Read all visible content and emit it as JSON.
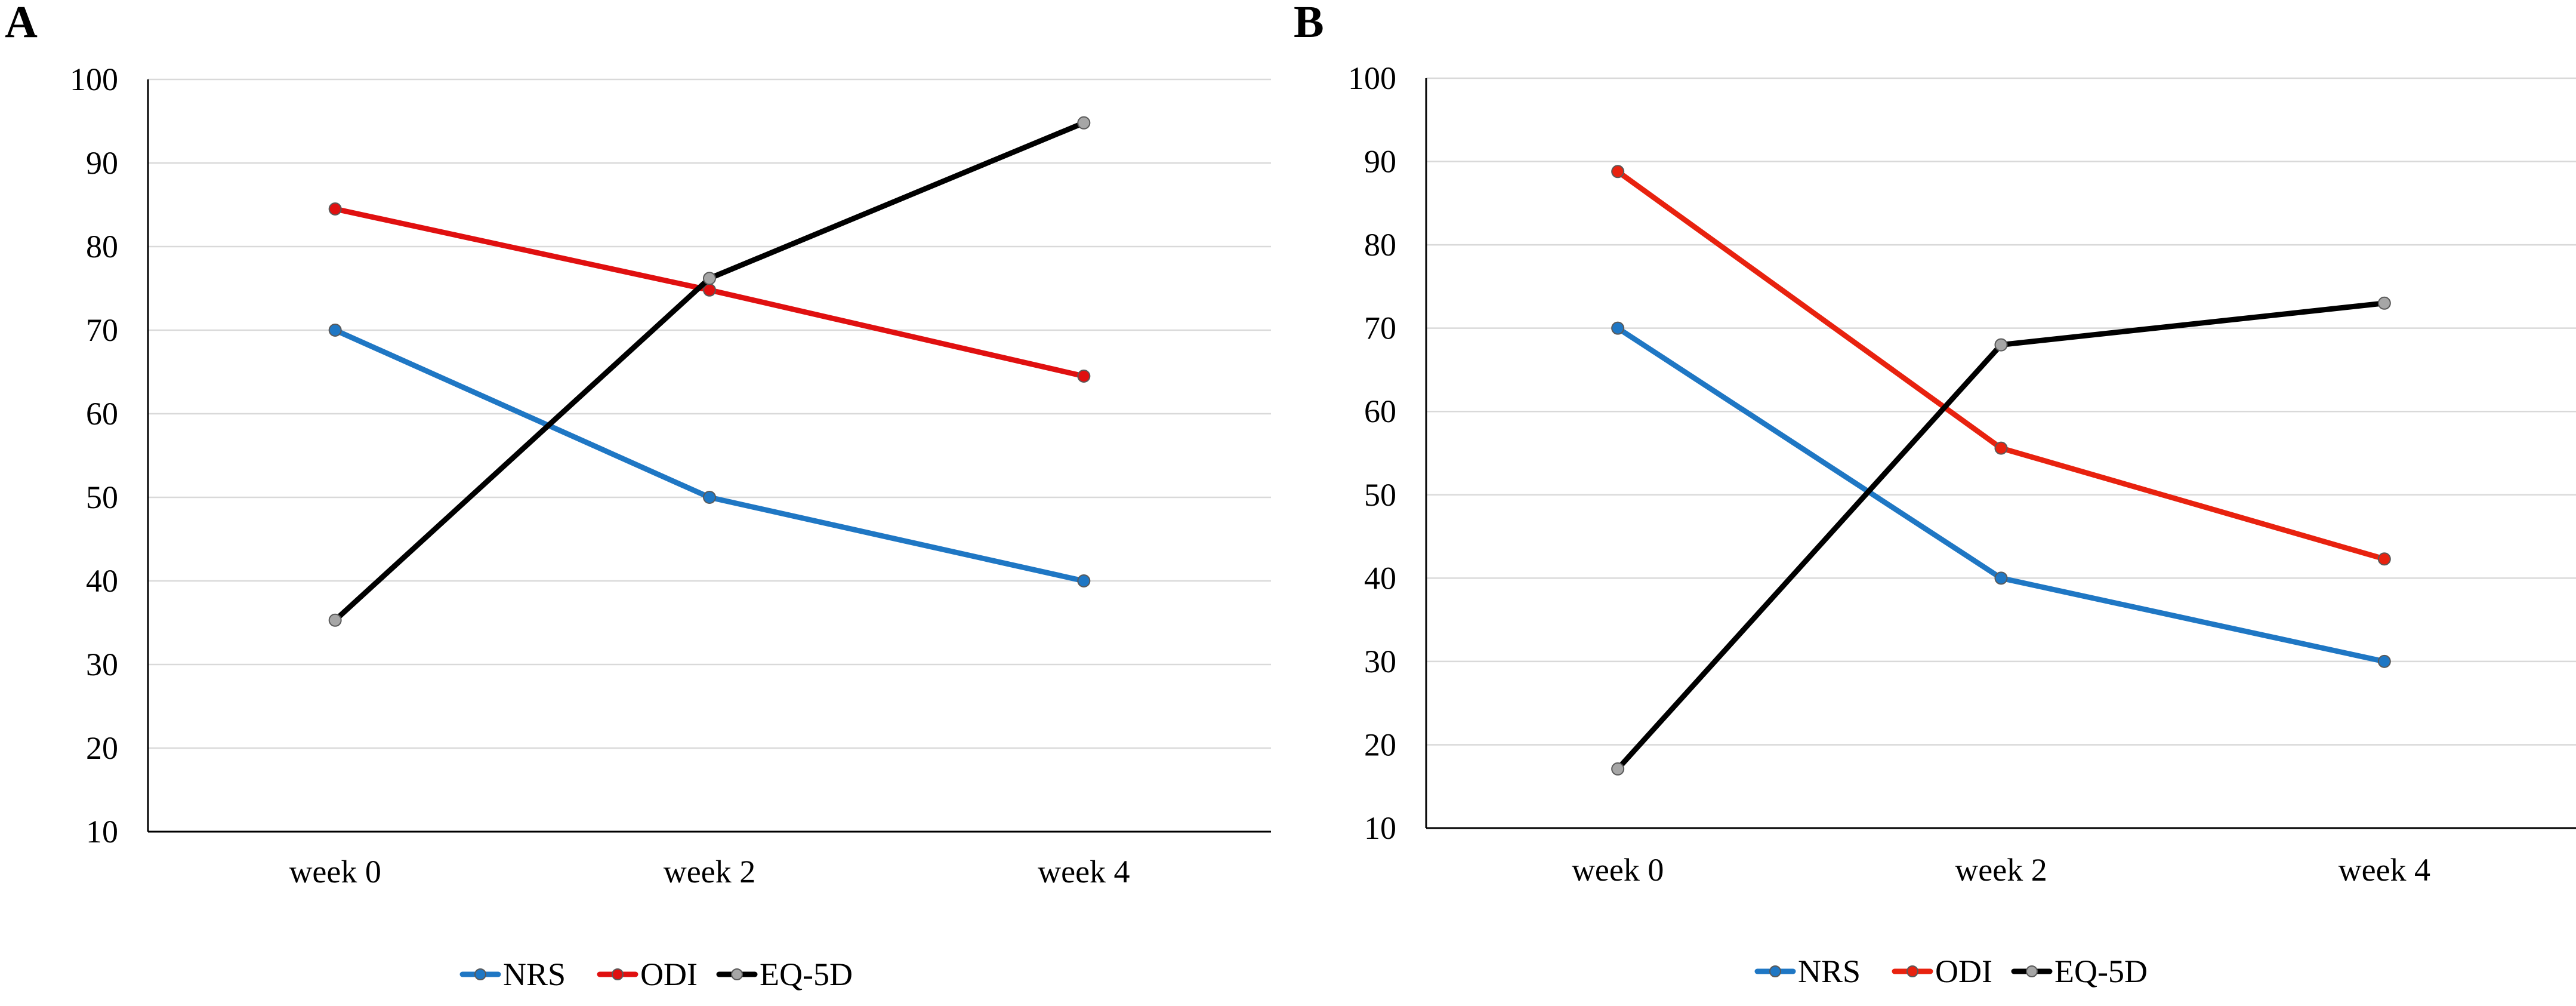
{
  "chart_data": [
    {
      "panel": "A",
      "type": "line",
      "categories": [
        "week 0",
        "week 2",
        "week 4"
      ],
      "ylim": [
        10,
        100
      ],
      "yticks": [
        10,
        20,
        30,
        40,
        50,
        60,
        70,
        80,
        90,
        100
      ],
      "grid": true,
      "legend_position": "bottom-center",
      "series": [
        {
          "name": "NRS",
          "color": "#1f77c4",
          "values": [
            70,
            50,
            40
          ]
        },
        {
          "name": "ODI",
          "color": "#e01010",
          "values": [
            84.5,
            74.8,
            64.5
          ]
        },
        {
          "name": "EQ-5D",
          "color": "#000000",
          "values": [
            35.3,
            76.2,
            94.8
          ]
        }
      ]
    },
    {
      "panel": "B",
      "type": "line",
      "categories": [
        "week 0",
        "week 2",
        "week 4"
      ],
      "ylim": [
        10,
        100
      ],
      "yticks": [
        10,
        20,
        30,
        40,
        50,
        60,
        70,
        80,
        90,
        100
      ],
      "grid": true,
      "legend_position": "bottom-center",
      "series": [
        {
          "name": "NRS",
          "color": "#1f77c4",
          "values": [
            70,
            40,
            30
          ]
        },
        {
          "name": "ODI",
          "color": "#e8220f",
          "values": [
            88.8,
            55.6,
            42.3
          ]
        },
        {
          "name": "EQ-5D",
          "color": "#000000",
          "values": [
            17.1,
            68,
            73
          ]
        }
      ]
    }
  ]
}
